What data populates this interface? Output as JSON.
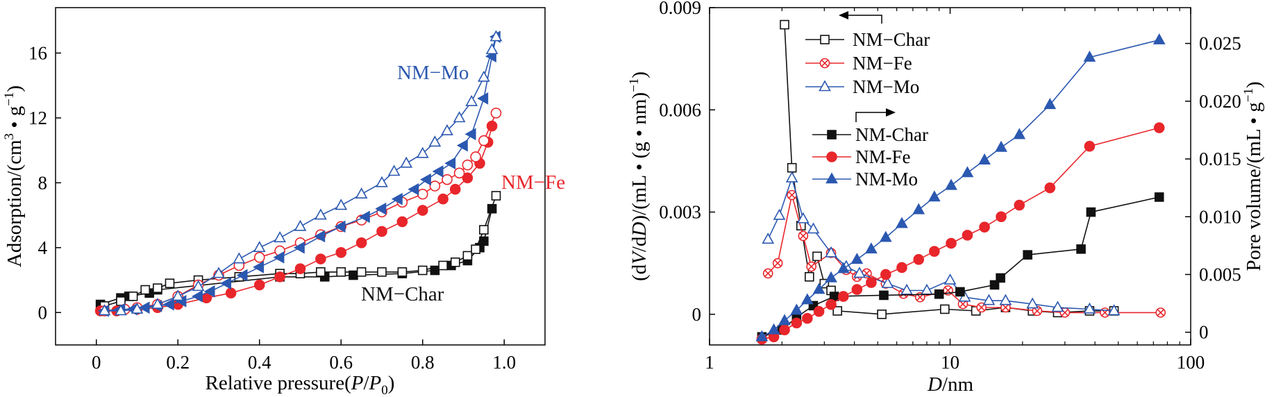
{
  "colors": {
    "char": "#111111",
    "fe": "#e8262b",
    "mo": "#2b58b0",
    "axis": "#000000"
  },
  "chart_data": [
    {
      "type": "line",
      "xlabel_parts": [
        "Relative pressure(",
        "P",
        "/",
        "P",
        "0",
        ")"
      ],
      "ylabel_parts": [
        "Adsorption/(cm",
        "3",
        " • g",
        "−1",
        ")"
      ],
      "xlim": [
        -0.1,
        1.1
      ],
      "ylim": [
        -2,
        18.8
      ],
      "xticks": [
        0,
        0.2,
        0.4,
        0.6,
        0.8,
        1.0
      ],
      "xtick_labels": [
        "0",
        "0.2",
        "0.4",
        "0.6",
        "0.8",
        "1.0"
      ],
      "yticks": [
        0,
        4,
        8,
        12,
        16
      ],
      "ytick_labels": [
        "0",
        "4",
        "8",
        "12",
        "16"
      ],
      "annotations": [
        "NM−Mo",
        "NM−Fe",
        "NM−Char"
      ],
      "series": [
        {
          "key": "char_ads",
          "color": "char",
          "marker": "square",
          "fill": "filled",
          "x": [
            0.01,
            0.06,
            0.08,
            0.13,
            0.15,
            0.45,
            0.56,
            0.63,
            0.75,
            0.83,
            0.87,
            0.91,
            0.94,
            0.95,
            0.97
          ],
          "y": [
            0.5,
            0.9,
            1.0,
            1.2,
            1.4,
            2.2,
            2.2,
            2.3,
            2.4,
            2.6,
            2.9,
            3.2,
            4.0,
            4.4,
            6.4
          ]
        },
        {
          "key": "char_des",
          "color": "char",
          "marker": "square",
          "fill": "open",
          "x": [
            0.02,
            0.06,
            0.09,
            0.12,
            0.15,
            0.18,
            0.25,
            0.35,
            0.45,
            0.5,
            0.55,
            0.6,
            0.65,
            0.7,
            0.75,
            0.8,
            0.85,
            0.88,
            0.91,
            0.93,
            0.95,
            0.98
          ],
          "y": [
            0.4,
            0.7,
            1.0,
            1.4,
            1.5,
            1.8,
            2.0,
            2.2,
            2.4,
            2.4,
            2.5,
            2.5,
            2.5,
            2.5,
            2.5,
            2.6,
            2.9,
            3.1,
            3.5,
            3.9,
            5.1,
            7.2
          ]
        },
        {
          "key": "fe_ads",
          "color": "fe",
          "marker": "circle",
          "fill": "filled",
          "x": [
            0.01,
            0.05,
            0.1,
            0.15,
            0.2,
            0.27,
            0.33,
            0.4,
            0.45,
            0.5,
            0.55,
            0.6,
            0.65,
            0.7,
            0.75,
            0.8,
            0.85,
            0.88,
            0.91,
            0.94,
            0.96,
            0.97
          ],
          "y": [
            0.1,
            0.1,
            0.2,
            0.3,
            0.5,
            0.9,
            1.2,
            1.7,
            2.2,
            2.7,
            3.3,
            3.7,
            4.3,
            5.0,
            5.6,
            6.3,
            7.0,
            7.6,
            8.3,
            9.2,
            10.5,
            11.5
          ]
        },
        {
          "key": "fe_des",
          "color": "fe",
          "marker": "circle",
          "fill": "open",
          "x": [
            0.02,
            0.07,
            0.1,
            0.15,
            0.2,
            0.25,
            0.3,
            0.35,
            0.4,
            0.45,
            0.5,
            0.55,
            0.6,
            0.65,
            0.7,
            0.75,
            0.8,
            0.83,
            0.86,
            0.89,
            0.91,
            0.93,
            0.95,
            0.98
          ],
          "y": [
            0.1,
            0.2,
            0.3,
            0.5,
            1.0,
            1.7,
            2.3,
            2.9,
            3.4,
            3.8,
            4.3,
            4.8,
            5.3,
            5.7,
            6.2,
            6.8,
            7.3,
            7.8,
            8.2,
            8.6,
            9.1,
            9.6,
            10.6,
            12.3
          ]
        },
        {
          "key": "mo_ads",
          "color": "mo",
          "marker": "tri-left",
          "fill": "filled",
          "x": [
            0.02,
            0.06,
            0.09,
            0.12,
            0.15,
            0.18,
            0.21,
            0.25,
            0.28,
            0.32,
            0.36,
            0.4,
            0.45,
            0.5,
            0.55,
            0.6,
            0.66,
            0.7,
            0.74,
            0.78,
            0.81,
            0.84,
            0.87,
            0.9,
            0.92,
            0.95,
            0.97,
            0.98
          ],
          "y": [
            0.1,
            0.2,
            0.2,
            0.3,
            0.4,
            0.5,
            0.7,
            1.0,
            1.3,
            1.8,
            2.3,
            2.8,
            3.4,
            4.0,
            4.7,
            5.3,
            5.9,
            6.4,
            7.0,
            7.6,
            8.2,
            8.7,
            9.2,
            10.3,
            11.0,
            13.2,
            15.8,
            17.0
          ]
        },
        {
          "key": "mo_des",
          "color": "mo",
          "marker": "tri-up",
          "fill": "open",
          "x": [
            0.02,
            0.06,
            0.1,
            0.15,
            0.2,
            0.25,
            0.3,
            0.35,
            0.4,
            0.45,
            0.5,
            0.55,
            0.6,
            0.65,
            0.7,
            0.73,
            0.76,
            0.8,
            0.83,
            0.86,
            0.89,
            0.92,
            0.95,
            0.97,
            0.98
          ],
          "y": [
            0.1,
            0.1,
            0.2,
            0.5,
            1.0,
            1.6,
            2.4,
            3.3,
            4.0,
            4.6,
            5.3,
            6.0,
            6.6,
            7.3,
            8.0,
            8.7,
            9.2,
            9.8,
            10.5,
            11.2,
            12.0,
            13.0,
            14.5,
            16.2,
            17.0
          ]
        }
      ]
    },
    {
      "type": "line",
      "xscale": "log",
      "xlabel_parts": [
        "D",
        "/nm"
      ],
      "ylabel_parts": [
        "(d",
        "V",
        "/d",
        "D",
        ")/(mL • (g • nm)",
        "−1",
        ")"
      ],
      "y2label_parts": [
        "Pore volume/(mL • g",
        "−1",
        ")"
      ],
      "xlim": [
        1,
        100
      ],
      "ylim": [
        -0.0009,
        0.009
      ],
      "y2lim": [
        -0.0011,
        0.0281
      ],
      "xticks": [
        1,
        10,
        100
      ],
      "xtick_labels": [
        "1",
        "10",
        "100"
      ],
      "yticks": [
        0,
        0.003,
        0.006,
        0.009
      ],
      "ytick_labels": [
        "0",
        "0.003",
        "0.006",
        "0.009"
      ],
      "y2ticks": [
        0,
        0.005,
        0.01,
        0.015,
        0.02,
        0.025
      ],
      "y2tick_labels": [
        "0",
        "0.005",
        "0.010",
        "0.015",
        "0.020",
        "0.025"
      ],
      "legend_groups": [
        {
          "arrow": "left",
          "entries": [
            {
              "label": "NM−Char",
              "series": "char_dvdd"
            },
            {
              "label": "NM−Fe",
              "series": "fe_dvdd"
            },
            {
              "label": "NM−Mo",
              "series": "mo_dvdd"
            }
          ]
        },
        {
          "arrow": "right",
          "entries": [
            {
              "label": "NM-Char",
              "series": "char_pv"
            },
            {
              "label": "NM-Fe",
              "series": "fe_pv"
            },
            {
              "label": "NM-Mo",
              "series": "mo_pv"
            }
          ]
        }
      ],
      "series": [
        {
          "key": "char_dvdd",
          "color": "char",
          "marker": "square",
          "fill": "open",
          "axis": "left",
          "x": [
            2.05,
            2.2,
            2.4,
            2.6,
            2.8,
            3.0,
            3.2,
            3.4,
            5.2,
            9.5,
            12.8,
            17,
            22,
            28,
            38,
            48
          ],
          "y": [
            0.0085,
            0.0043,
            0.0026,
            0.0011,
            0.0017,
            0.0009,
            0.0007,
            0.0001,
            0.0,
            0.00015,
            0.0001,
            0.0002,
            0.0001,
            5e-05,
            0.0001,
            0.0001
          ]
        },
        {
          "key": "fe_dvdd",
          "color": "fe",
          "marker": "circle-x",
          "fill": "open",
          "axis": "left",
          "x": [
            1.75,
            1.92,
            2.2,
            2.45,
            2.65,
            3.2,
            3.7,
            4.1,
            4.5,
            5.4,
            6.4,
            7.5,
            9.8,
            11.3,
            13.5,
            17,
            23,
            30,
            44,
            75
          ],
          "y": [
            0.0012,
            0.0015,
            0.0035,
            0.0023,
            0.0014,
            0.0018,
            0.0013,
            0.0011,
            0.0012,
            0.0009,
            0.0006,
            0.0005,
            0.0007,
            0.0003,
            0.0002,
            0.0002,
            0.0001,
            5e-05,
            5e-05,
            5e-05
          ]
        },
        {
          "key": "mo_dvdd",
          "color": "mo",
          "marker": "tri-up",
          "fill": "open",
          "axis": "left",
          "x": [
            1.75,
            1.95,
            2.2,
            2.45,
            2.7,
            3.2,
            3.7,
            4.2,
            5.5,
            6.6,
            8.0,
            10.0,
            11.5,
            14.5,
            17,
            22,
            28,
            38,
            48
          ],
          "y": [
            0.0022,
            0.0029,
            0.004,
            0.0028,
            0.0025,
            0.0018,
            0.0014,
            0.0012,
            0.0009,
            0.0007,
            0.0007,
            0.001,
            0.0005,
            0.0004,
            0.0004,
            0.0003,
            0.0002,
            0.00015,
            0.0001
          ]
        },
        {
          "key": "char_pv",
          "color": "char",
          "marker": "square",
          "fill": "filled",
          "axis": "right",
          "x": [
            1.65,
            2.0,
            2.3,
            2.7,
            3.3,
            5.3,
            9.0,
            11.0,
            15.3,
            16.2,
            21,
            35,
            38.5,
            74
          ],
          "y": [
            -0.0004,
            0.0002,
            0.0013,
            0.0023,
            0.0031,
            0.0032,
            0.0033,
            0.0035,
            0.0041,
            0.0047,
            0.0067,
            0.0072,
            0.0104,
            0.0117
          ]
        },
        {
          "key": "fe_pv",
          "color": "fe",
          "marker": "circle",
          "fill": "filled",
          "axis": "right",
          "x": [
            1.65,
            1.85,
            2.05,
            2.3,
            2.55,
            2.85,
            3.2,
            3.6,
            4.1,
            4.7,
            5.4,
            6.3,
            7.4,
            8.6,
            10.1,
            11.8,
            13.9,
            16.3,
            19.4,
            26,
            38,
            74
          ],
          "y": [
            -0.0006,
            -0.0004,
            0.0002,
            0.0008,
            0.0012,
            0.0018,
            0.0024,
            0.0031,
            0.0037,
            0.0043,
            0.005,
            0.0056,
            0.0063,
            0.007,
            0.0077,
            0.0084,
            0.0091,
            0.01,
            0.011,
            0.0125,
            0.0161,
            0.0177
          ]
        },
        {
          "key": "mo_pv",
          "color": "mo",
          "marker": "tri-up",
          "fill": "filled",
          "axis": "right",
          "x": [
            1.65,
            1.85,
            2.05,
            2.3,
            2.55,
            2.85,
            3.2,
            3.6,
            4.1,
            4.7,
            5.4,
            6.3,
            7.4,
            8.6,
            10.1,
            11.8,
            13.9,
            16.3,
            19.4,
            26,
            38,
            74
          ],
          "y": [
            -0.0004,
            0.0002,
            0.001,
            0.0019,
            0.0028,
            0.0037,
            0.0047,
            0.0055,
            0.0063,
            0.0072,
            0.0082,
            0.0094,
            0.0106,
            0.0117,
            0.0127,
            0.0138,
            0.0149,
            0.016,
            0.0171,
            0.0197,
            0.0238,
            0.0253
          ]
        }
      ]
    }
  ]
}
